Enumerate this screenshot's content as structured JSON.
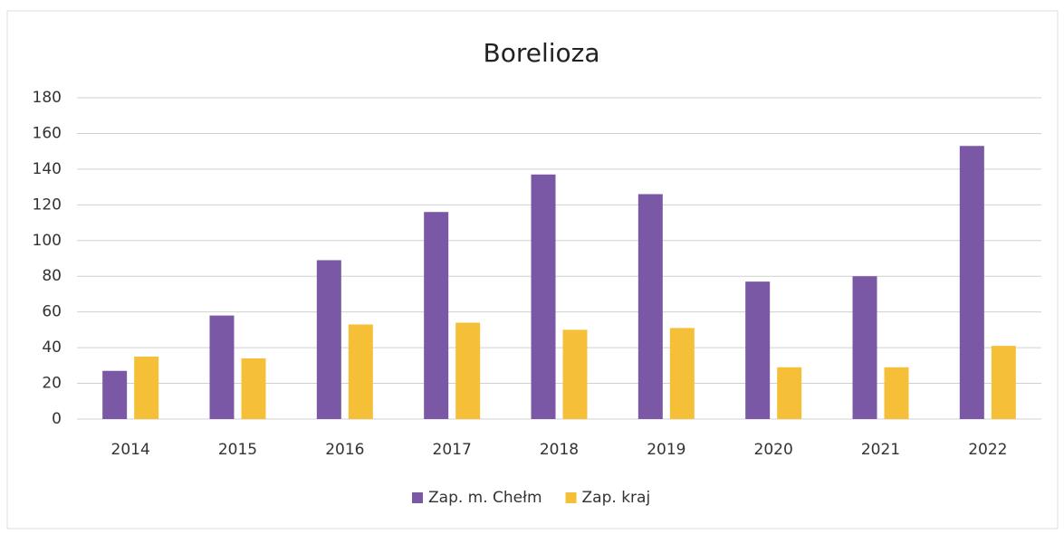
{
  "chart_data": {
    "type": "bar",
    "title": "Borelioza",
    "categories": [
      "2014",
      "2015",
      "2016",
      "2017",
      "2018",
      "2019",
      "2020",
      "2021",
      "2022"
    ],
    "series": [
      {
        "name": "Zap. m. Chełm",
        "color": "#7b58a6",
        "values": [
          27,
          58,
          89,
          116,
          137,
          126,
          77,
          80,
          153
        ]
      },
      {
        "name": "Zap. kraj",
        "color": "#f5c037",
        "values": [
          35,
          34,
          53,
          54,
          50,
          51,
          29,
          29,
          41
        ]
      }
    ],
    "ylim": [
      0,
      180
    ],
    "yticks": [
      0,
      20,
      40,
      60,
      80,
      100,
      120,
      140,
      160,
      180
    ],
    "grid": true,
    "legend": "bottom"
  }
}
